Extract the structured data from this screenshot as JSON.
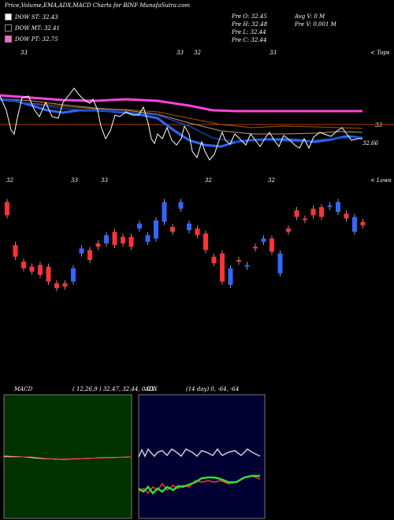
{
  "header": {
    "title": "Price,Volume,EMA,ADX,MACD Charts for BINF MunafaSutra.com"
  },
  "legend": [
    {
      "label": "DOW ST: 32.43",
      "color": "#ffffff"
    },
    {
      "label": "DOW MT: 32.41",
      "color": "#000000"
    },
    {
      "label": "DOW PT: 32.75",
      "color": "#ff66cc"
    }
  ],
  "stats": {
    "open": "Pre O: 32.45",
    "high": "Pre H: 32.48",
    "low": "Pre L: 32.44",
    "close": "Pre C: 32.44",
    "avg_vol": "Avg V: 0 M",
    "pre_vol": "Pre V: 0.001 M"
  },
  "top_panel": {
    "corner_label": "< Tops",
    "top_tick_labels": [
      "33",
      "33",
      "32",
      "33"
    ],
    "bottom_tick_labels": [
      "32",
      "33",
      "33",
      "32",
      "32"
    ],
    "right_labels": [
      "33",
      "32.66"
    ]
  },
  "candle_panel": {
    "corner_label": "< Lows"
  },
  "macd": {
    "label": "MACD",
    "params": "( 12,26,9 ) 32.47, 32.44, 0.03"
  },
  "adx": {
    "label": "ADX",
    "params": "(14 day) 0, -64, -64"
  },
  "chart_data": {
    "type": "candlestick",
    "title": "Price,Volume,EMA,ADX,MACD Charts for BINF MunafaSutra.com",
    "candles": [
      {
        "o": 32.88,
        "c": 32.8,
        "color": "red"
      },
      {
        "o": 32.62,
        "c": 32.55,
        "color": "red"
      },
      {
        "o": 32.52,
        "c": 32.48,
        "color": "red"
      },
      {
        "o": 32.49,
        "c": 32.46,
        "color": "red"
      },
      {
        "o": 32.5,
        "c": 32.44,
        "color": "red"
      },
      {
        "o": 32.49,
        "c": 32.4,
        "color": "red"
      },
      {
        "o": 32.39,
        "c": 32.36,
        "color": "red"
      },
      {
        "o": 32.37,
        "c": 32.39,
        "color": "red"
      },
      {
        "o": 32.4,
        "c": 32.48,
        "color": "blue"
      },
      {
        "o": 32.57,
        "c": 32.6,
        "color": "blue"
      },
      {
        "o": 32.59,
        "c": 32.53,
        "color": "red"
      },
      {
        "o": 32.61,
        "c": 32.63,
        "color": "red"
      },
      {
        "o": 32.63,
        "c": 32.68,
        "color": "blue"
      },
      {
        "o": 32.7,
        "c": 32.62,
        "color": "red"
      },
      {
        "o": 32.63,
        "c": 32.67,
        "color": "red"
      },
      {
        "o": 32.61,
        "c": 32.67,
        "color": "red"
      },
      {
        "o": 32.72,
        "c": 32.75,
        "color": "blue"
      },
      {
        "o": 32.68,
        "c": 32.64,
        "color": "blue"
      },
      {
        "o": 32.66,
        "c": 32.77,
        "color": "blue"
      },
      {
        "o": 32.76,
        "c": 32.88,
        "color": "blue"
      },
      {
        "o": 32.73,
        "c": 32.7,
        "color": "red"
      },
      {
        "o": 32.88,
        "c": 32.84,
        "color": "blue"
      },
      {
        "o": 32.75,
        "c": 32.71,
        "color": "blue"
      },
      {
        "o": 32.72,
        "c": 32.68,
        "color": "red"
      },
      {
        "o": 32.69,
        "c": 32.59,
        "color": "red"
      },
      {
        "o": 32.55,
        "c": 32.51,
        "color": "red"
      },
      {
        "o": 32.57,
        "c": 32.4,
        "color": "red"
      },
      {
        "o": 32.48,
        "c": 32.38,
        "color": "blue"
      },
      {
        "o": 32.53,
        "c": 32.52,
        "color": "red"
      },
      {
        "o": 32.5,
        "c": 32.49,
        "color": "blue"
      },
      {
        "o": 32.6,
        "c": 32.61,
        "color": "red"
      },
      {
        "o": 32.64,
        "c": 32.66,
        "color": "blue"
      },
      {
        "o": 32.66,
        "c": 32.58,
        "color": "red"
      },
      {
        "o": 32.45,
        "c": 32.57,
        "color": "blue"
      },
      {
        "o": 32.7,
        "c": 32.72,
        "color": "red"
      },
      {
        "o": 32.83,
        "c": 32.79,
        "color": "red"
      },
      {
        "o": 32.78,
        "c": 32.78,
        "color": "red"
      },
      {
        "o": 32.84,
        "c": 32.8,
        "color": "red"
      },
      {
        "o": 32.85,
        "c": 32.79,
        "color": "red"
      },
      {
        "o": 32.86,
        "c": 32.86,
        "color": "blue"
      },
      {
        "o": 32.82,
        "c": 32.88,
        "color": "blue"
      },
      {
        "o": 32.81,
        "c": 32.78,
        "color": "red"
      },
      {
        "o": 32.79,
        "c": 32.7,
        "color": "blue"
      },
      {
        "o": 32.76,
        "c": 32.74,
        "color": "red"
      }
    ]
  },
  "colors": {
    "bg": "#000000",
    "macd_bg": "#003300",
    "adx_bg": "#000033",
    "bull": "#3366ff",
    "bear": "#ff3333",
    "ema_pink": "#ff44dd",
    "ema_orange": "#cc6600",
    "ema_blue": "#3366ff",
    "price_white": "#ffffff"
  }
}
